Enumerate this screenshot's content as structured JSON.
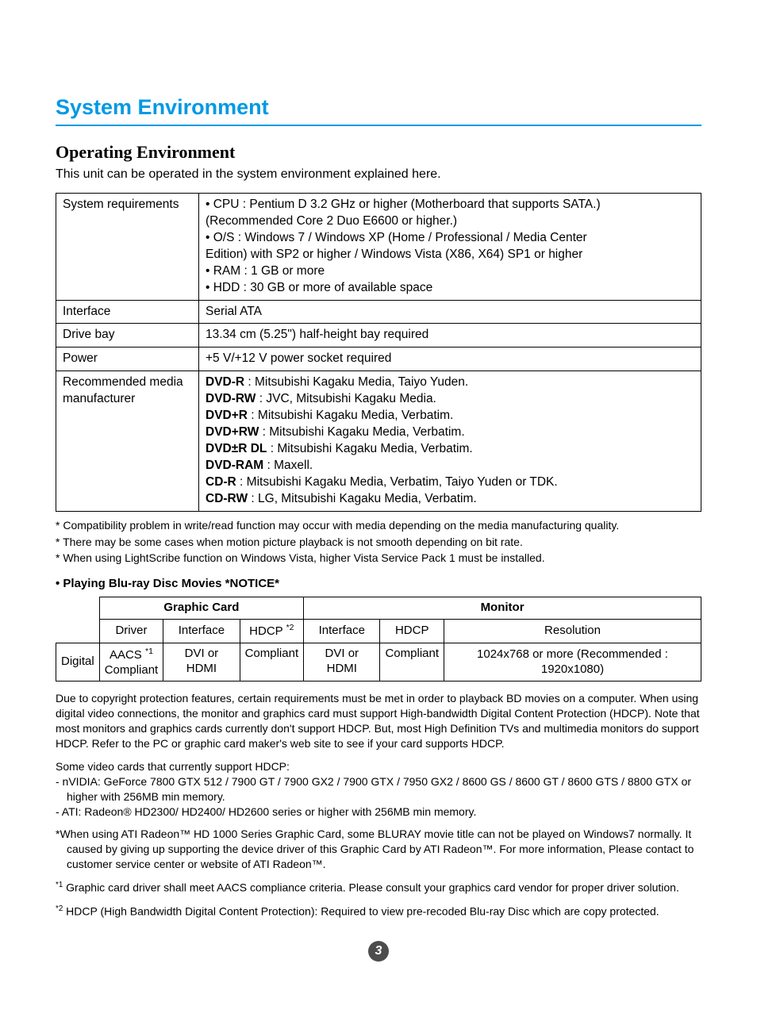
{
  "h1": "System Environment",
  "h2": "Operating Environment",
  "intro": "This unit can be operated in the system environment explained here.",
  "spec_rows": [
    {
      "label": "System requirements",
      "value_html": "• CPU : Pentium D 3.2 GHz or higher (Motherboard that supports SATA.)\n        (Recommended Core 2 Duo E6600 or higher.)\n• O/S : Windows 7 / Windows XP (Home / Professional / Media Center\n  Edition) with SP2 or higher / Windows Vista (X86, X64) SP1 or higher\n• RAM : 1 GB or more\n• HDD : 30 GB or more of available space"
    },
    {
      "label": "Interface",
      "value_html": "Serial ATA"
    },
    {
      "label": "Drive bay",
      "value_html": "13.34 cm (5.25\") half-height bay required"
    },
    {
      "label": "Power",
      "value_html": "+5 V/+12 V power socket required"
    },
    {
      "label": "Recommended media manufacturer",
      "value_html": "<b>DVD-R</b> : Mitsubishi Kagaku Media, Taiyo Yuden.\n<b>DVD-RW</b> : JVC, Mitsubishi Kagaku Media.\n<b>DVD+R</b> : Mitsubishi Kagaku Media, Verbatim.\n<b>DVD+RW</b> : Mitsubishi Kagaku Media, Verbatim.\n<b>DVD±R DL</b> : Mitsubishi Kagaku Media, Verbatim.\n<b>DVD-RAM</b> : Maxell.\n<b>CD-R</b> : Mitsubishi Kagaku Media, Verbatim, Taiyo Yuden or TDK.\n<b>CD-RW</b> : LG, Mitsubishi Kagaku Media, Verbatim."
    }
  ],
  "notes": [
    "* Compatibility problem in write/read function may occur with media depending on the media manufacturing quality.",
    "* There may be some cases when motion picture playback is not smooth depending on bit rate.",
    "* When using LightScribe function on Windows Vista, higher Vista Service Pack 1 must be installed."
  ],
  "notice_heading": "• Playing Blu-ray Disc Movies  *NOTICE*",
  "bd_table": {
    "gc_header": "Graphic Card",
    "mon_header": "Monitor",
    "sub": {
      "driver": "Driver",
      "gc_if": "Interface",
      "hdcp2": "HDCP",
      "hdcp2_sup": "*2",
      "mon_if": "Interface",
      "mon_hdcp": "HDCP",
      "res": "Resolution"
    },
    "row": {
      "digital": "Digital",
      "aacs": "AACS",
      "aacs_sup": "*1",
      "compliant1": "Compliant",
      "gc_if": "DVI or HDMI",
      "compliant2": "Compliant",
      "mon_if": "DVI or HDMI",
      "compliant3": "Compliant",
      "res": "1024x768 or more (Recommended : 1920x1080)"
    }
  },
  "body": {
    "p1": "Due to copyright protection features, certain requirements must be met in order to playback BD movies on a computer. When using digital video connections, the monitor and graphics card must support High-bandwidth Digital Content Protection (HDCP). Note that most monitors and graphics cards currently don't support HDCP. But, most High Definition TVs and multimedia monitors do support HDCP. Refer to the PC or graphic card maker's web site to see if your card supports HDCP.",
    "p2": "Some video cards that currently support HDCP:",
    "l1": "- nVIDIA: GeForce 7800 GTX 512 / 7900 GT / 7900 GX2 / 7900 GTX / 7950 GX2 / 8600 GS / 8600 GT / 8600 GTS / 8800 GTX or higher with 256MB min memory.",
    "l2": "- ATI: Radeon® HD2300/ HD2400/ HD2600 series or higher with 256MB min memory.",
    "p3": "*When using ATI Radeon™ HD 1000 Series Graphic Card, some BLURAY movie title can not be played on Windows7 normally. It caused by giving up supporting the device driver of this Graphic Card by ATI Radeon™. For more information, Please contact to customer service center or website of ATI Radeon™.",
    "fn1": "Graphic card driver shall meet AACS compliance criteria. Please consult your graphics card vendor for proper driver solution.",
    "fn1_sup": "*1",
    "fn2": "HDCP (High Bandwidth Digital Content Protection): Required to view pre-recoded Blu-ray Disc which are copy protected.",
    "fn2_sup": "*2"
  },
  "page_number": "3",
  "colors": {
    "accent": "#0099e5",
    "pagenum_bg": "#4d4d4d"
  }
}
